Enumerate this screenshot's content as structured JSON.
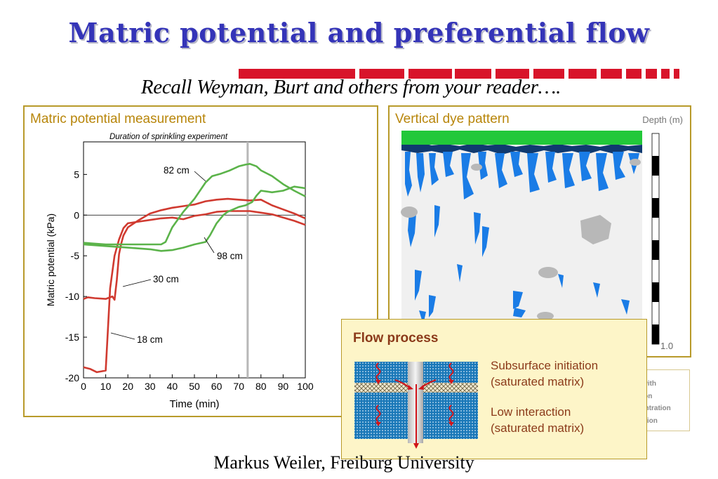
{
  "slide": {
    "title": "Matric potential and preferential flow",
    "subtitle": "Recall Weyman, Burt and others from your reader….",
    "footer": "Markus Weiler, Freiburg University",
    "accent_color": "#d8142a",
    "title_color": "#3434b8"
  },
  "left_panel": {
    "title": "Matric potential measurement",
    "chart_data": {
      "type": "line",
      "title": "Duration of sprinkling experiment",
      "xlabel": "Time (min)",
      "ylabel": "Matric potential (kPa)",
      "xlim": [
        0,
        100
      ],
      "ylim": [
        -20,
        9
      ],
      "x_ticks": [
        "0",
        "10",
        "20",
        "30",
        "40",
        "50",
        "60",
        "70",
        "80",
        "90",
        "100"
      ],
      "y_ticks": [
        "5",
        "0",
        "-5",
        "-10",
        "-15",
        "-20"
      ],
      "sprinkling_end_min": 74,
      "series": [
        {
          "name": "18 cm",
          "color": "#d03a30",
          "x": [
            0,
            3,
            6,
            10,
            11,
            12,
            14,
            16,
            18,
            20,
            25,
            30,
            35,
            40,
            45,
            50,
            55,
            60,
            65,
            70,
            75,
            80,
            85,
            90,
            95,
            100
          ],
          "y": [
            -18.7,
            -18.9,
            -19.3,
            -19.1,
            -14,
            -9,
            -5,
            -3,
            -1.6,
            -1,
            -0.8,
            -0.6,
            -0.4,
            -0.3,
            -0.5,
            -0.1,
            0.1,
            0.4,
            0.5,
            0.5,
            0.5,
            0.3,
            0.1,
            -0.3,
            -0.7,
            -1.2
          ]
        },
        {
          "name": "30 cm",
          "color": "#d03a30",
          "x": [
            0,
            2,
            5,
            10,
            13,
            14,
            15,
            16,
            17,
            18,
            20,
            25,
            30,
            35,
            40,
            45,
            50,
            55,
            60,
            65,
            70,
            75,
            80,
            85,
            90,
            95,
            100
          ],
          "y": [
            -10.3,
            -10.1,
            -10.2,
            -10.3,
            -10.0,
            -10.4,
            -8.0,
            -4.8,
            -3.5,
            -2.5,
            -1.5,
            -0.6,
            0.2,
            0.6,
            0.9,
            1.1,
            1.3,
            1.7,
            1.9,
            2.0,
            1.9,
            1.8,
            1.9,
            1.2,
            0.7,
            0.2,
            -0.4
          ]
        },
        {
          "name": "82 cm",
          "color": "#5bb34a",
          "x": [
            0,
            10,
            20,
            30,
            35,
            37,
            40,
            45,
            50,
            55,
            58,
            62,
            66,
            70,
            73,
            75,
            78,
            80,
            85,
            90,
            95,
            100
          ],
          "y": [
            -3.4,
            -3.6,
            -3.6,
            -3.6,
            -3.6,
            -3.3,
            -1.5,
            0.4,
            2.0,
            4.0,
            4.8,
            5.1,
            5.5,
            6.0,
            6.2,
            6.3,
            6.0,
            5.5,
            4.8,
            3.8,
            3.0,
            2.3
          ]
        },
        {
          "name": "98 cm",
          "color": "#5bb34a",
          "x": [
            0,
            10,
            20,
            30,
            35,
            40,
            45,
            50,
            55,
            57,
            60,
            63,
            65,
            70,
            73,
            76,
            78,
            80,
            85,
            90,
            95,
            100
          ],
          "y": [
            -3.6,
            -3.8,
            -4.0,
            -4.2,
            -4.4,
            -4.3,
            -4.0,
            -3.6,
            -3.3,
            -2.5,
            -1.0,
            0.0,
            0.4,
            1.0,
            1.2,
            1.6,
            2.4,
            3.0,
            2.8,
            3.0,
            3.5,
            3.3
          ]
        }
      ],
      "annotations": [
        {
          "label": "82 cm",
          "series": "82 cm"
        },
        {
          "label": "98 cm",
          "series": "98 cm"
        },
        {
          "label": "30 cm",
          "series": "30 cm"
        },
        {
          "label": "18 cm",
          "series": "18 cm"
        }
      ]
    }
  },
  "right_panel": {
    "title": "Vertical dye pattern",
    "depth_label": "Depth (m)",
    "depth_max_label": "1.0",
    "surface_color": "#22c83a",
    "dye_color": "#1a7ce6",
    "stone_color": "#b8b8b8"
  },
  "hidden_box": {
    "lines": [
      "with",
      "tion",
      "entration",
      "ation"
    ]
  },
  "flow_box": {
    "title": "Flow process",
    "item1_line1": "Subsurface initiation",
    "item1_line2": "(saturated matrix)",
    "item2_line1": "Low interaction",
    "item2_line2": "(saturated matrix)"
  }
}
